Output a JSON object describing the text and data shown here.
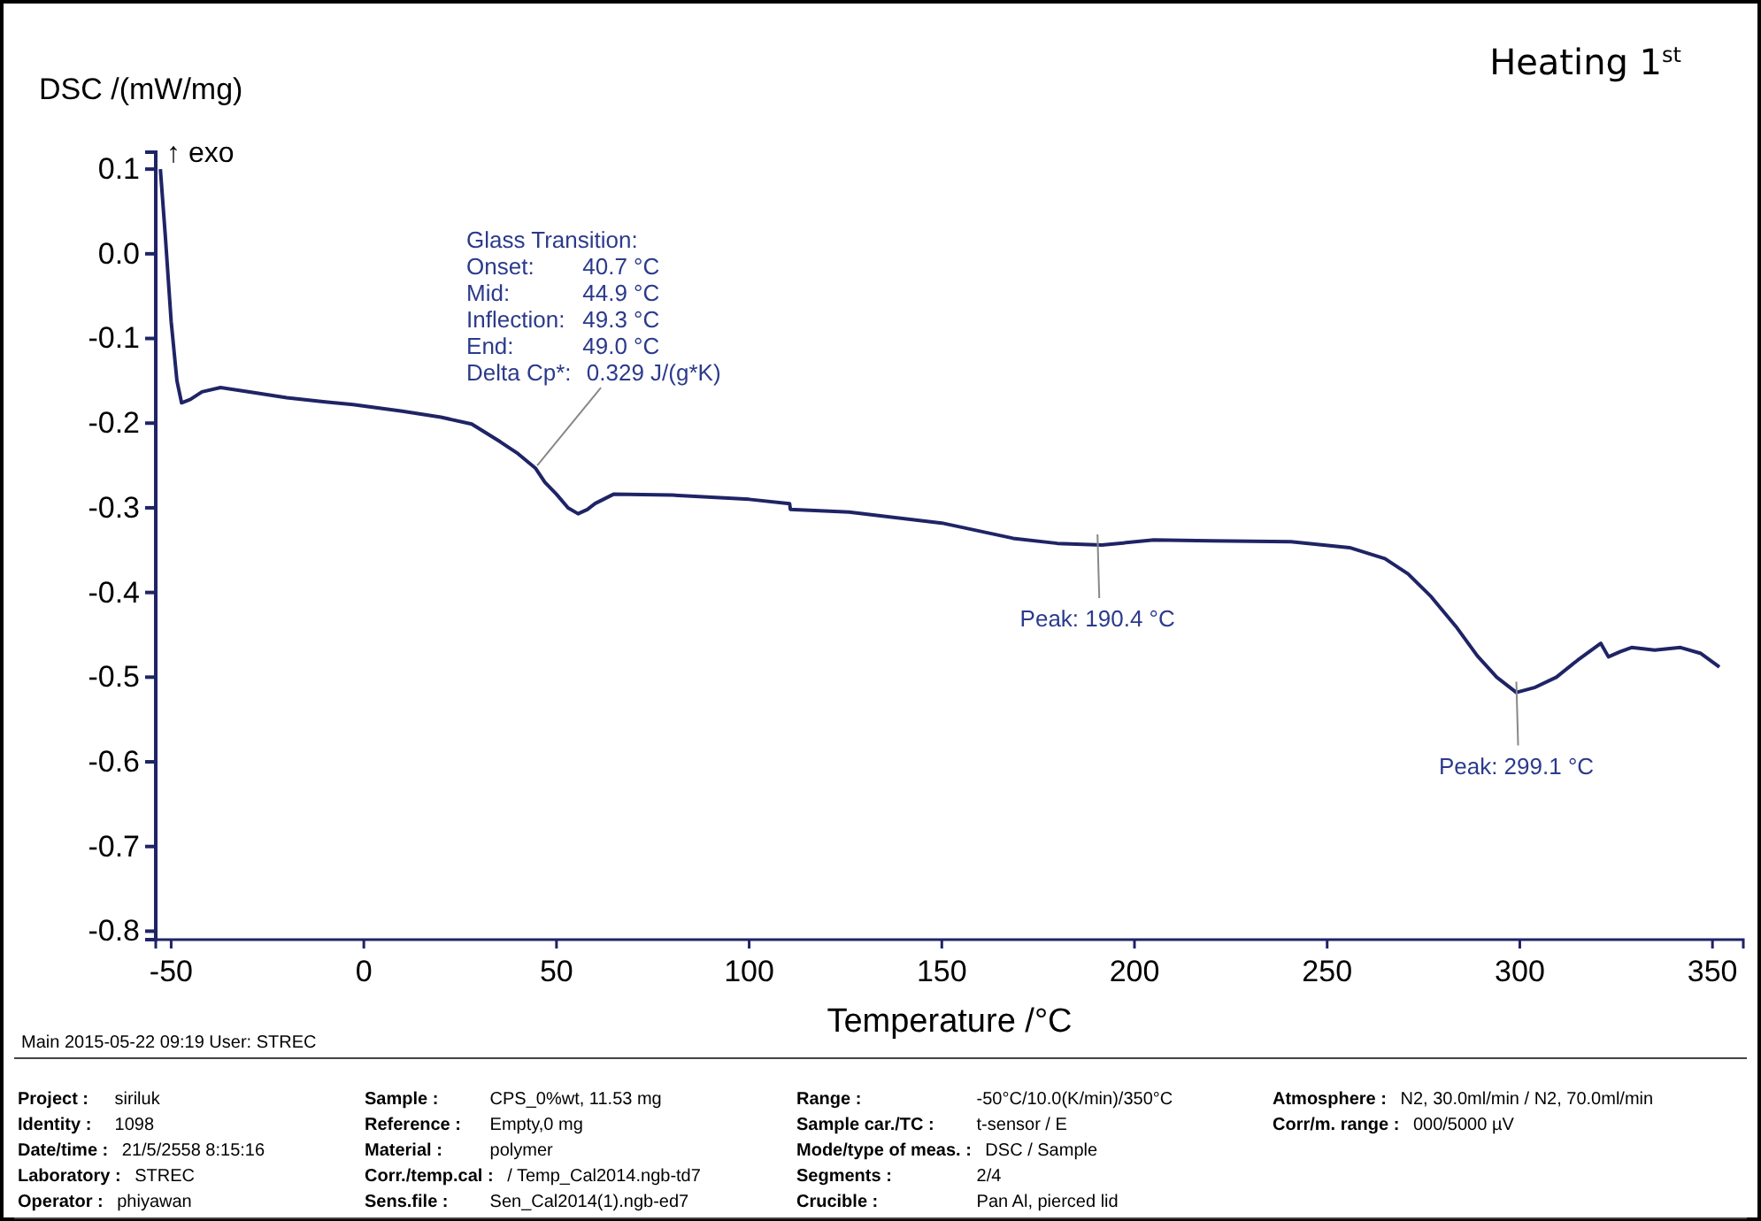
{
  "chart_data": {
    "type": "line",
    "title": "Heating 1$^{st}$",
    "xlabel": "Temperature /°C",
    "ylabel": "DSC /(mW/mg)",
    "xlim": [
      -54,
      358
    ],
    "ylim": [
      -0.81,
      0.12
    ],
    "xticks": [
      -50,
      0,
      50,
      100,
      150,
      200,
      250,
      300,
      350
    ],
    "yticks": [
      {
        "value": 0.1,
        "label": "0.1"
      },
      {
        "value": 0,
        "label": "0.0"
      },
      -0.1,
      -0.2,
      -0.3,
      -0.4,
      -0.5,
      -0.6,
      -0.7,
      -0.8
    ],
    "grid": false,
    "marker": "none",
    "line_style": "solid",
    "series": [
      {
        "color": "#1f2466",
        "x": [
          -52.8,
          -51.5,
          -50,
          -48.5,
          -47.3,
          -45,
          -42,
          -37.2,
          -30,
          -20,
          -10,
          -2.8,
          10,
          20,
          28,
          35.4,
          40,
          44.5,
          47,
          50,
          53,
          55.6,
          58,
          60,
          64.8,
          80,
          100,
          110.5,
          110.7,
          125.9,
          150,
          168.5,
          180,
          191.5,
          205,
          220,
          240.6,
          255.8,
          265,
          271,
          277,
          283.4,
          289,
          294,
          299.1,
          304,
          309.5,
          315,
          321,
          323,
          326,
          329,
          335,
          341.7,
          347,
          351.8
        ],
        "values": [
          0.1,
          0.02,
          -0.08,
          -0.15,
          -0.176,
          -0.172,
          -0.163,
          -0.158,
          -0.163,
          -0.17,
          -0.175,
          -0.178,
          -0.186,
          -0.193,
          -0.201,
          -0.222,
          -0.236,
          -0.253,
          -0.27,
          -0.284,
          -0.3,
          -0.307,
          -0.302,
          -0.295,
          -0.284,
          -0.285,
          -0.29,
          -0.295,
          -0.302,
          -0.305,
          -0.318,
          -0.336,
          -0.342,
          -0.344,
          -0.338,
          -0.339,
          -0.34,
          -0.347,
          -0.36,
          -0.378,
          -0.405,
          -0.44,
          -0.475,
          -0.5,
          -0.518,
          -0.512,
          -0.5,
          -0.48,
          -0.46,
          -0.476,
          -0.47,
          -0.465,
          -0.468,
          -0.465,
          -0.472,
          -0.488
        ]
      }
    ],
    "annotations": [
      "Glass Transition:",
      "Onset: 40.7 °C",
      "Mid: 44.9 °C",
      "Inflection: 49.3 °C",
      "End: 49.0 °C",
      {
        "text": "Delta Cp*: 0.329 J/(g*K)",
        "x": 45,
        "y": -0.25
      },
      {
        "text": "Peak: 190.4 °C",
        "x": 190.4,
        "y": -0.344
      },
      {
        "text": "Peak: 299.1 °C",
        "x": 299.1,
        "y": -0.518
      },
      "↑ exo",
      "Main  2015-05-22 09:19   User: STREC",
      "Project : siriluk",
      "Identity : 1098",
      "Date/time : 21/5/2558 8:15:16",
      "Laboratory : STREC",
      "Operator : phiyawan",
      "Sample : CPS_0%wt, 11.53 mg",
      "Reference : Empty,0 mg",
      "Material : polymer",
      "Corr./temp.cal : / Temp_Cal2014.ngb-td7",
      "Sens.file : Sen_Cal2014(1).ngb-ed7",
      "Range : -50°C/10.0(K/min)/350°C",
      "Sample car./TC : t-sensor / E",
      "Mode/type of meas. : DSC / Sample",
      "Segments : 2/4",
      "Crucible : Pan Al, pierced lid",
      "Atmosphere : N2, 30.0ml/min / N2, 70.0ml/min",
      "Corr/m. range : 000/5000 µV"
    ]
  }
}
